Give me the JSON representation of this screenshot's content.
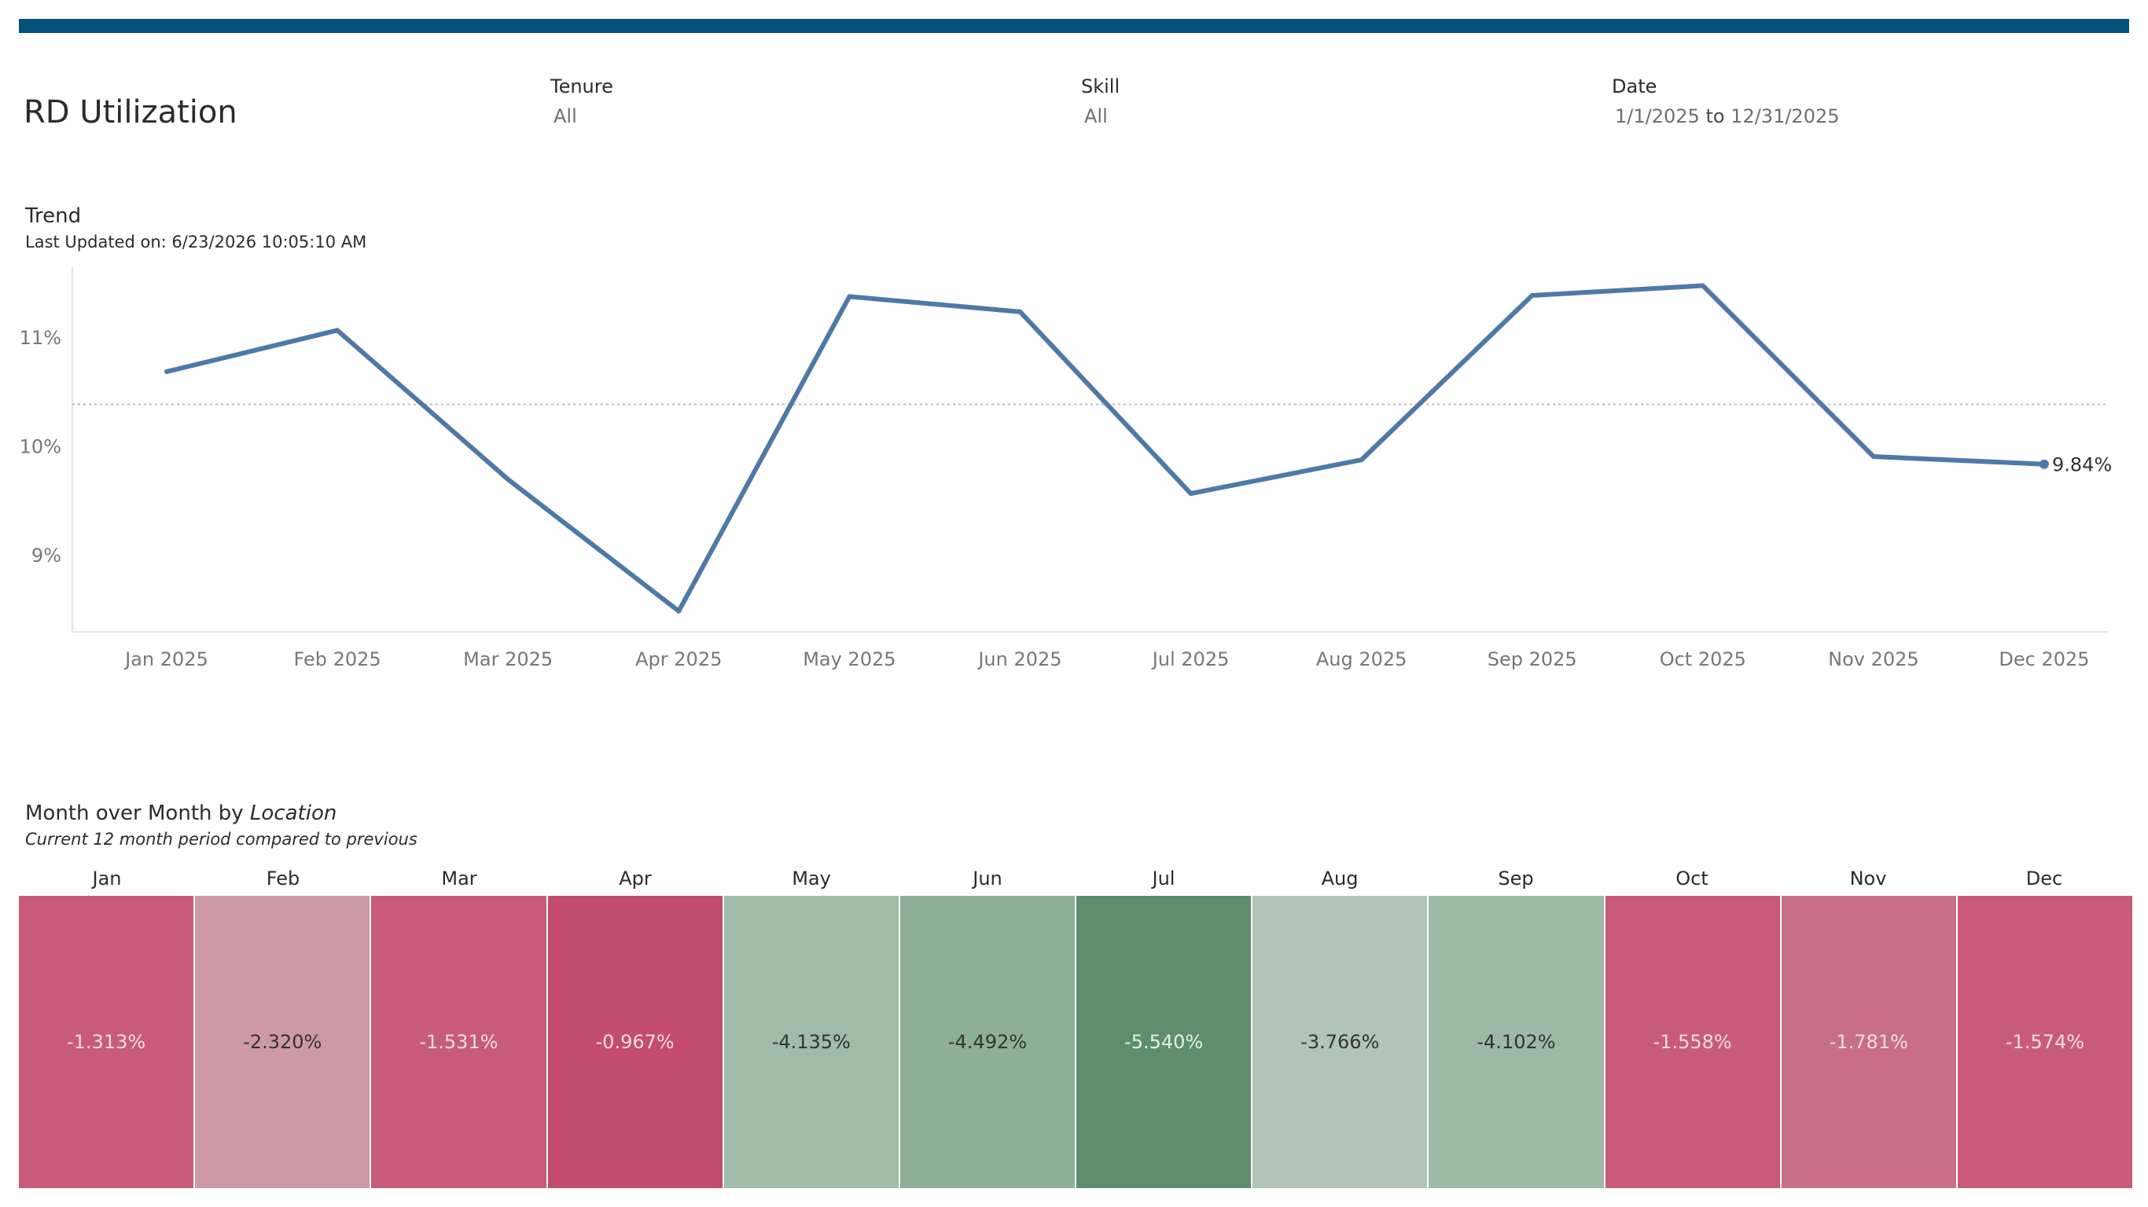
{
  "dashboard": {
    "title": "RD Utilization",
    "accent_color": "#02527c"
  },
  "filters": {
    "tenure": {
      "label": "Tenure",
      "value": "All"
    },
    "skill": {
      "label": "Skill",
      "value": "All"
    },
    "date": {
      "label": "Date",
      "start": "1/1/2025",
      "separator": "to",
      "end": "12/31/2025"
    }
  },
  "trend": {
    "title": "Trend",
    "subtitle": "Last Updated on: 6/23/2026 10:05:10 AM"
  },
  "mom": {
    "title_prefix": "Month over Month by ",
    "title_dimension": "Location",
    "subtitle": "Current 12  month period compared to previous"
  },
  "chart_data": [
    {
      "type": "line",
      "title": "Trend",
      "categories": [
        "Jan 2025",
        "Feb 2025",
        "Mar 2025",
        "Apr 2025",
        "May 2025",
        "Jun 2025",
        "Jul 2025",
        "Aug 2025",
        "Sep 2025",
        "Oct 2025",
        "Nov 2025",
        "Dec 2025"
      ],
      "series": [
        {
          "values": [
            10.69,
            11.07,
            9.7,
            8.49,
            11.38,
            11.24,
            9.57,
            9.88,
            11.39,
            11.48,
            9.91,
            9.84
          ],
          "color": "#4e79a7"
        }
      ],
      "reference_line": 10.39,
      "end_label": "9.84%",
      "y_ticks": [
        {
          "value": 9,
          "label": "9%"
        },
        {
          "value": 10,
          "label": "10%"
        },
        {
          "value": 11,
          "label": "11%"
        }
      ],
      "ylim": [
        8.3,
        11.65
      ],
      "grid": false
    },
    {
      "type": "heatmap",
      "title": "Month over Month by Location",
      "categories": [
        "Jan",
        "Feb",
        "Mar",
        "Apr",
        "May",
        "Jun",
        "Jul",
        "Aug",
        "Sep",
        "Oct",
        "Nov",
        "Dec"
      ],
      "values": [
        -1.313,
        -2.32,
        -1.531,
        -0.967,
        -4.135,
        -4.492,
        -5.54,
        -3.766,
        -4.102,
        -1.558,
        -1.781,
        -1.574
      ],
      "labels": [
        "-1.313%",
        "-2.320%",
        "-1.531%",
        "-0.967%",
        "-4.135%",
        "-4.492%",
        "-5.540%",
        "-3.766%",
        "-4.102%",
        "-1.558%",
        "-1.781%",
        "-1.574%"
      ],
      "colors": [
        "#c85c78",
        "#ce99a6",
        "#c85c78",
        "#c44c6c",
        "#a0bba8",
        "#8daf98",
        "#5e8e6c",
        "#b1c4b7",
        "#9dbaa6",
        "#c85c78",
        "#c86f86",
        "#c85c78"
      ],
      "text_colors": [
        "#f4dde3",
        "#333333",
        "#f4dde3",
        "#f4dde3",
        "#333333",
        "#333333",
        "#e3efe6",
        "#333333",
        "#333333",
        "#f4dde3",
        "#f4dde3",
        "#f4dde3"
      ]
    }
  ]
}
